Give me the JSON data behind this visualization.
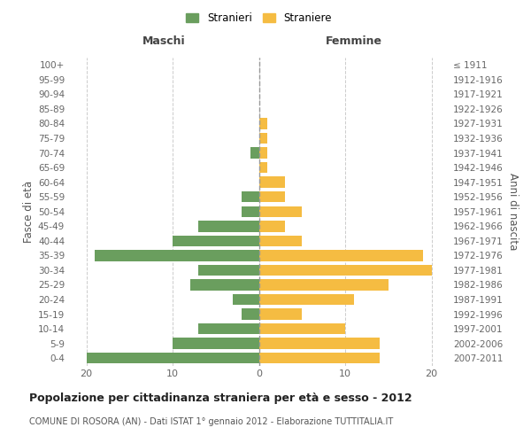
{
  "age_groups": [
    "0-4",
    "5-9",
    "10-14",
    "15-19",
    "20-24",
    "25-29",
    "30-34",
    "35-39",
    "40-44",
    "45-49",
    "50-54",
    "55-59",
    "60-64",
    "65-69",
    "70-74",
    "75-79",
    "80-84",
    "85-89",
    "90-94",
    "95-99",
    "100+"
  ],
  "birth_years": [
    "2007-2011",
    "2002-2006",
    "1997-2001",
    "1992-1996",
    "1987-1991",
    "1982-1986",
    "1977-1981",
    "1972-1976",
    "1967-1971",
    "1962-1966",
    "1957-1961",
    "1952-1956",
    "1947-1951",
    "1942-1946",
    "1937-1941",
    "1932-1936",
    "1927-1931",
    "1922-1926",
    "1917-1921",
    "1912-1916",
    "≤ 1911"
  ],
  "males": [
    20,
    10,
    7,
    2,
    3,
    8,
    7,
    19,
    10,
    7,
    2,
    2,
    0,
    0,
    1,
    0,
    0,
    0,
    0,
    0,
    0
  ],
  "females": [
    14,
    14,
    10,
    5,
    11,
    15,
    20,
    19,
    5,
    3,
    5,
    3,
    3,
    1,
    1,
    1,
    1,
    0,
    0,
    0,
    0
  ],
  "male_color": "#6a9e5e",
  "female_color": "#f5bc42",
  "male_label": "Stranieri",
  "female_label": "Straniere",
  "title": "Popolazione per cittadinanza straniera per età e sesso - 2012",
  "subtitle": "COMUNE DI ROSORA (AN) - Dati ISTAT 1° gennaio 2012 - Elaborazione TUTTITALIA.IT",
  "ylabel_left": "Fasce di età",
  "ylabel_right": "Anni di nascita",
  "xlabel_maschi": "Maschi",
  "xlabel_femmine": "Femmine",
  "xlim": 22,
  "background_color": "#ffffff",
  "grid_color": "#cccccc",
  "bar_height": 0.75
}
